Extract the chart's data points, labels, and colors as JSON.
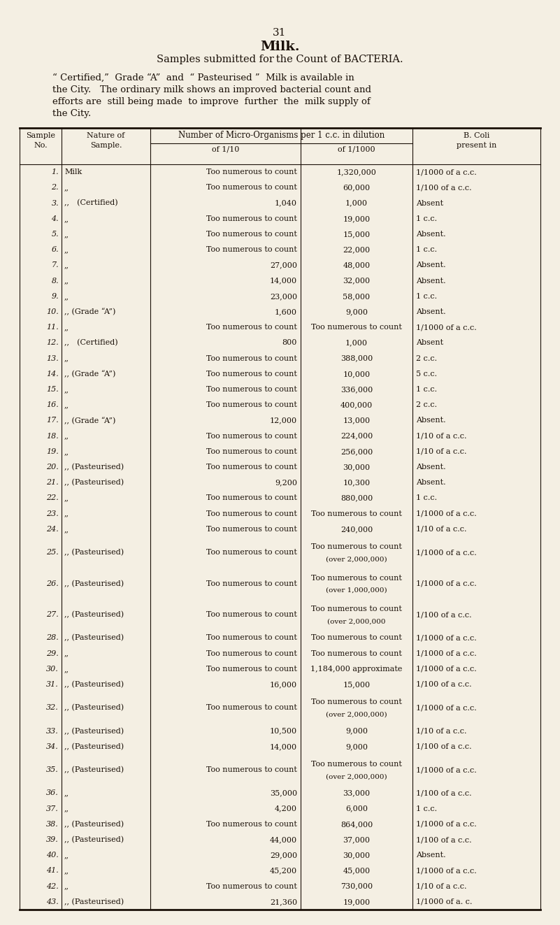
{
  "page_number": "31",
  "title": "Milk.",
  "subtitle": "Samples submitted for the Count of BACTERIA.",
  "intro_line1": "“ Certified,”  Grade “A”  and  “ Pasteurised ”  Milk is available in",
  "intro_line2": "the City.   The ordinary milk shows an improved bacterial count and",
  "intro_line3": "efforts are  still being made  to improve  further  the  milk supply of",
  "intro_line4": "the City.",
  "bg_color": "#f4efe3",
  "text_color": "#1a1008",
  "rows": [
    [
      "1.",
      "Milk",
      "Too numerous to count",
      "1,320,000",
      "1/1000 of a c.c."
    ],
    [
      "2.",
      ",,",
      "Too numerous to count",
      "60,000",
      "1/100 of a c.c."
    ],
    [
      "3.",
      ",, (Certified)",
      "1,040",
      "1,000",
      "Absent"
    ],
    [
      "4.",
      ",,",
      "Too numerous to count",
      "19,000",
      "1 c.c."
    ],
    [
      "5.",
      ",,",
      "Too numerous to count",
      "15,000",
      "Absent."
    ],
    [
      "6.",
      ",,",
      "Too numerous to count",
      "22,000",
      "1 c.c."
    ],
    [
      "7.",
      ",,",
      "27,000",
      "48,000",
      "Absent."
    ],
    [
      "8.",
      ",,",
      "14,000",
      "32,000",
      "Absent."
    ],
    [
      "9.",
      ",,",
      "23,000",
      "58,000",
      "1 c.c."
    ],
    [
      "10.",
      ",, (Grade “A”)",
      "1,600",
      "9,000",
      "Absent."
    ],
    [
      "11.",
      ",,",
      "Too numerous to count",
      "Too numerous to count",
      "1/1000 of a c.c."
    ],
    [
      "12.",
      ",, (Certified)",
      "800",
      "1,000",
      "Absent"
    ],
    [
      "13.",
      ",,",
      "Too numerous to count",
      "388,000",
      "2 c.c."
    ],
    [
      "14.",
      ",, (Grade “A”)",
      "Too numerous to count",
      "10,000",
      "5 c.c."
    ],
    [
      "15.",
      ",,",
      "Too numerous to count",
      "336,000",
      "1 c.c."
    ],
    [
      "16.",
      ",,",
      "Too numerous to count",
      "400,000",
      "2 c.c."
    ],
    [
      "17.",
      ",, (Grade “A”)",
      "12,000",
      "13,000",
      "Absent."
    ],
    [
      "18.",
      ",,",
      "Too numerous to count",
      "224,000",
      "1/10 of a c.c."
    ],
    [
      "19.",
      ",,",
      "Too numerous to count",
      "256,000",
      "1/10 of a c.c."
    ],
    [
      "20.",
      ",, (Pasteurised)",
      "Too numerous to count",
      "30,000",
      "Absent."
    ],
    [
      "21.",
      ",, (Pasteurised)",
      "9,200",
      "10,300",
      "Absent."
    ],
    [
      "22.",
      ",,",
      "Too numerous to count",
      "880,000",
      "1 c.c."
    ],
    [
      "23.",
      ",,",
      "Too numerous to count",
      "Too numerous to count",
      "1/1000 of a c.c."
    ],
    [
      "24.",
      ",,",
      "Too numerous to count",
      "240,000",
      "1/10 of a c.c."
    ],
    [
      "25.",
      ",, (Pasteurised)",
      "Too numerous to count",
      "Too numerous to count\n(over 2,000,000)",
      "1/1000 of a c.c."
    ],
    [
      "26.",
      ",, (Pasteurised)",
      "Too numerous to count",
      "Too numerous to count\n(over 1,000,000)",
      "1/1000 of a c.c."
    ],
    [
      "27.",
      ",, (Pasteurised)",
      "Too numerous to count",
      "Too numerous to count\n(over 2,000,000",
      "1/100 of a c.c."
    ],
    [
      "28.",
      ",, (Pasteurised)",
      "Too numerous to count",
      "Too numerous to count",
      "1/1000 of a c.c."
    ],
    [
      "29.",
      ",,",
      "Too numerous to count",
      "Too numerous to count",
      "1/1000 of a c.c."
    ],
    [
      "30.",
      ",,",
      "Too numerous to count",
      "1,184,000 approximate",
      "1/1000 of a c.c."
    ],
    [
      "31.",
      ",, (Pasteurised)",
      "16,000",
      "15,000",
      "1/100 of a c.c."
    ],
    [
      "32.",
      ",, (Pasteurised)",
      "Too numerous to count",
      "Too numerous to count\n(over 2,000,000)",
      "1/1000 of a c.c."
    ],
    [
      "33.",
      ",, (Pasteurised)",
      "10,500",
      "9,000",
      "1/10 of a c.c."
    ],
    [
      "34.",
      ",, (Pasteurised)",
      "14,000",
      "9,000",
      "1/100 of a c.c."
    ],
    [
      "35.",
      ",, (Pasteurised)",
      "Too numerous to count",
      "Too numerous to count\n(over 2,000,000)",
      "1/1000 of a c.c."
    ],
    [
      "36.",
      ",,",
      "35,000",
      "33,000",
      "1/100 of a c.c."
    ],
    [
      "37.",
      ",,",
      "4,200",
      "6,000",
      "1 c.c."
    ],
    [
      "38.",
      ",, (Pasteurised)",
      "Too numerous to count",
      "864,000",
      "1/1000 of a c.c."
    ],
    [
      "39.",
      ",, (Pasteurised)",
      "44,000",
      "37,000",
      "1/100 of a c.c."
    ],
    [
      "40.",
      ",,",
      "29,000",
      "30,000",
      "Absent."
    ],
    [
      "41.",
      ",,",
      "45,200",
      "45,000",
      "1/1000 of a c.c."
    ],
    [
      "42.",
      ",,",
      "Too numerous to count",
      "730,000",
      "1/10 of a c.c."
    ],
    [
      "43.",
      ",, (Pasteurised)",
      "21,360",
      "19,000",
      "1/1000 of a. c."
    ]
  ]
}
